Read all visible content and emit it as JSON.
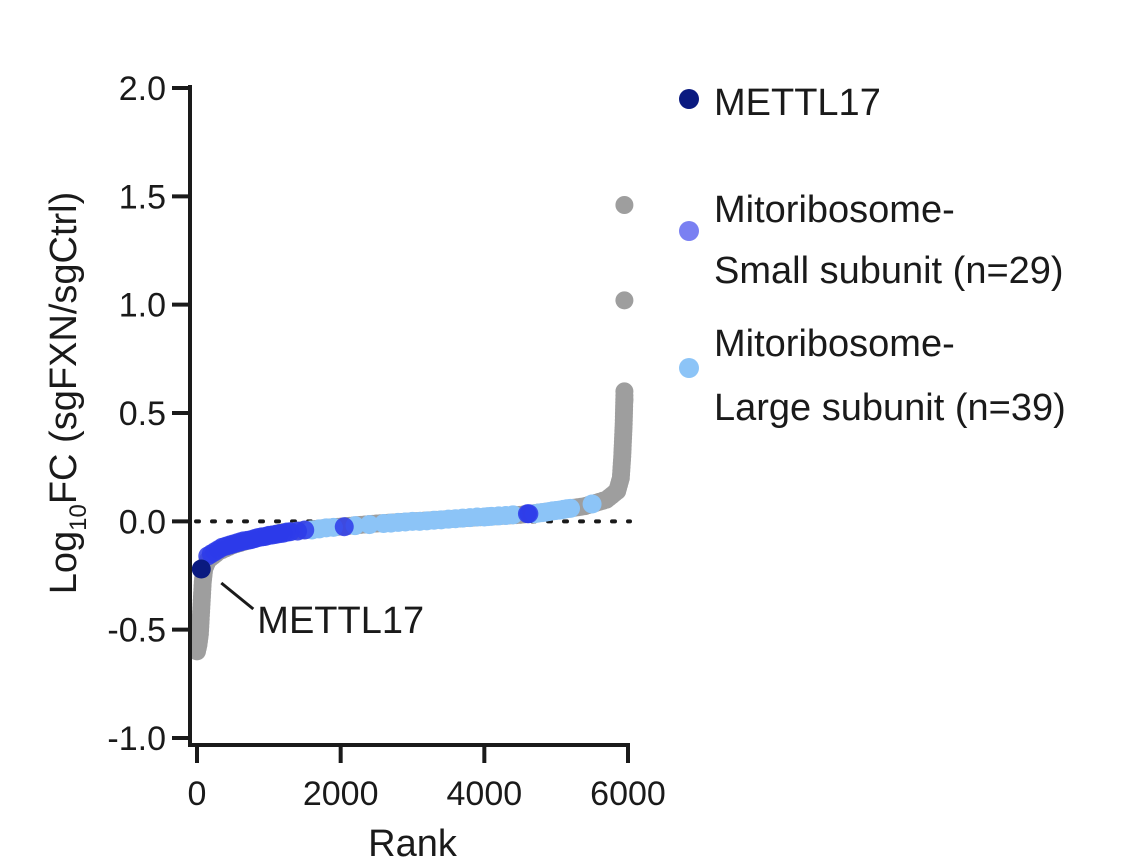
{
  "chart_data": {
    "type": "scatter",
    "xlabel": "Rank",
    "ylabel": {
      "main": "Log",
      "sub": "10",
      "rest": "FC (sgFXN/sgCtrl)"
    },
    "xlim": [
      0,
      6000
    ],
    "ylim": [
      -1.0,
      2.0
    ],
    "x_ticks": [
      0,
      2000,
      4000,
      6000
    ],
    "x_tick_labels": [
      "0",
      "2000",
      "4000",
      "6000"
    ],
    "y_ticks": [
      2.0,
      1.5,
      1.0,
      0.5,
      0.0,
      -0.5,
      -1.0
    ],
    "y_tick_labels": [
      "2.0",
      "1.5",
      "1.0",
      "0.5",
      "0.0",
      "-0.5",
      "-1.0"
    ],
    "reference_line": {
      "y": 0.0,
      "style": "dotted",
      "color": "#1a1a1a"
    },
    "grid": false,
    "legend_position": "right",
    "annotation": {
      "text": "METTL17",
      "x": 60,
      "y": -0.22
    },
    "background_curve": {
      "color": "#9e9e9e",
      "points": [
        [
          0,
          -0.6
        ],
        [
          20,
          -0.57
        ],
        [
          40,
          -0.52
        ],
        [
          60,
          -0.4
        ],
        [
          80,
          -0.28
        ],
        [
          100,
          -0.22
        ],
        [
          150,
          -0.18
        ],
        [
          300,
          -0.14
        ],
        [
          500,
          -0.11
        ],
        [
          800,
          -0.08
        ],
        [
          1200,
          -0.05
        ],
        [
          1800,
          -0.03
        ],
        [
          2500,
          -0.01
        ],
        [
          3000,
          0.0
        ],
        [
          3500,
          0.01
        ],
        [
          4000,
          0.02
        ],
        [
          4500,
          0.03
        ],
        [
          5000,
          0.05
        ],
        [
          5400,
          0.07
        ],
        [
          5700,
          0.1
        ],
        [
          5850,
          0.14
        ],
        [
          5900,
          0.2
        ],
        [
          5920,
          0.3
        ],
        [
          5940,
          0.45
        ],
        [
          5950,
          0.58
        ]
      ],
      "outliers": [
        [
          5950,
          1.46
        ],
        [
          5950,
          1.02
        ],
        [
          5950,
          0.6
        ],
        [
          5950,
          0.56
        ]
      ]
    },
    "series": [
      {
        "name": "METTL17",
        "color": "#0a1a80",
        "points": [
          [
            60,
            -0.22
          ]
        ]
      },
      {
        "name": "Mitoribosome- Small subunit (n=29)",
        "color": "#2d3bea",
        "points": [
          [
            150,
            -0.16
          ],
          [
            200,
            -0.15
          ],
          [
            250,
            -0.14
          ],
          [
            300,
            -0.13
          ],
          [
            350,
            -0.12
          ],
          [
            400,
            -0.115
          ],
          [
            450,
            -0.11
          ],
          [
            500,
            -0.105
          ],
          [
            550,
            -0.1
          ],
          [
            600,
            -0.095
          ],
          [
            650,
            -0.09
          ],
          [
            700,
            -0.088
          ],
          [
            750,
            -0.085
          ],
          [
            800,
            -0.08
          ],
          [
            850,
            -0.075
          ],
          [
            900,
            -0.072
          ],
          [
            950,
            -0.07
          ],
          [
            1000,
            -0.065
          ],
          [
            1050,
            -0.063
          ],
          [
            1100,
            -0.06
          ],
          [
            1150,
            -0.057
          ],
          [
            1200,
            -0.055
          ],
          [
            1250,
            -0.05
          ],
          [
            1300,
            -0.048
          ],
          [
            1400,
            -0.045
          ],
          [
            1500,
            -0.04
          ],
          [
            2050,
            -0.025
          ],
          [
            4600,
            0.035
          ],
          [
            4620,
            0.035
          ]
        ]
      },
      {
        "name": "Mitoribosome- Large subunit (n=39)",
        "color": "#8cc4f7",
        "points": [
          [
            1250,
            -0.05
          ],
          [
            1600,
            -0.04
          ],
          [
            1700,
            -0.035
          ],
          [
            1800,
            -0.03
          ],
          [
            1900,
            -0.028
          ],
          [
            2200,
            -0.02
          ],
          [
            2400,
            -0.015
          ],
          [
            2600,
            -0.01
          ],
          [
            2700,
            -0.008
          ],
          [
            2800,
            -0.005
          ],
          [
            2900,
            -0.003
          ],
          [
            3000,
            0.0
          ],
          [
            3100,
            0.0
          ],
          [
            3200,
            0.002
          ],
          [
            3300,
            0.005
          ],
          [
            3400,
            0.007
          ],
          [
            3500,
            0.01
          ],
          [
            3600,
            0.012
          ],
          [
            3700,
            0.015
          ],
          [
            3800,
            0.017
          ],
          [
            3900,
            0.02
          ],
          [
            4000,
            0.02
          ],
          [
            4050,
            0.022
          ],
          [
            4100,
            0.023
          ],
          [
            4200,
            0.025
          ],
          [
            4300,
            0.027
          ],
          [
            4400,
            0.03
          ],
          [
            4700,
            0.035
          ],
          [
            4750,
            0.038
          ],
          [
            4800,
            0.04
          ],
          [
            4850,
            0.042
          ],
          [
            4900,
            0.045
          ],
          [
            4950,
            0.048
          ],
          [
            5000,
            0.05
          ],
          [
            5050,
            0.052
          ],
          [
            5100,
            0.055
          ],
          [
            5150,
            0.058
          ],
          [
            5200,
            0.06
          ],
          [
            5500,
            0.08
          ]
        ]
      }
    ],
    "legend": [
      {
        "lines": [
          "METTL17"
        ],
        "color": "#0a1a80"
      },
      {
        "lines": [
          "Mitoribosome-",
          "Small subunit (n=29)"
        ],
        "color": "#7a80f2"
      },
      {
        "lines": [
          "Mitoribosome-",
          "Large subunit (n=39)"
        ],
        "color": "#8cc4f7"
      }
    ]
  }
}
